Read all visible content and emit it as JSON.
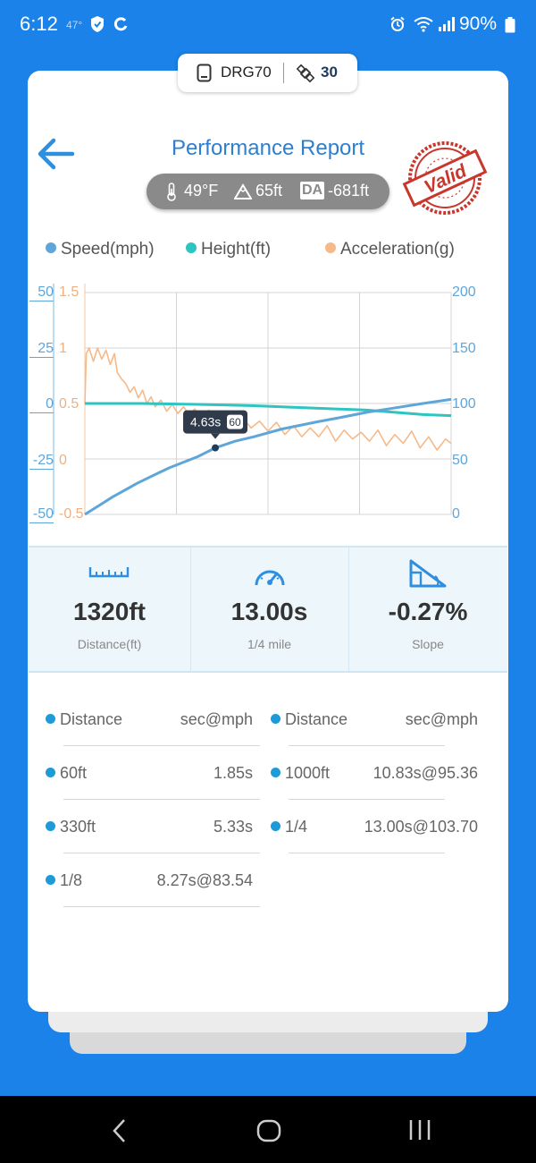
{
  "status_bar": {
    "time": "6:12",
    "temperature": "47°",
    "battery": "90%"
  },
  "device": {
    "name": "DRG70",
    "satellites": "30"
  },
  "header": {
    "title": "Performance Report",
    "badge": "Valid"
  },
  "conditions": {
    "temperature": "49°F",
    "altitude": "65ft",
    "da_label": "DA",
    "density_altitude": "-681ft"
  },
  "legend": {
    "speed": "Speed(mph)",
    "height": "Height(ft)",
    "acceleration": "Acceleration(g)"
  },
  "colors": {
    "speed": "#5ea6da",
    "height": "#2ec4c0",
    "acceleration": "#f5b98a",
    "accent": "#2e7fd0"
  },
  "chart_data": {
    "type": "line",
    "x_range": [
      0,
      13.0
    ],
    "axes": {
      "height_axis": {
        "ticks": [
          "50",
          "25",
          "0",
          "-25",
          "-50"
        ],
        "range": [
          -50,
          50
        ]
      },
      "acceleration_axis": {
        "ticks": [
          "1.5",
          "1",
          "0.5",
          "0",
          "-0.5"
        ],
        "range": [
          -0.5,
          1.5
        ]
      },
      "speed_axis": {
        "ticks": [
          "200",
          "150",
          "100",
          "50",
          "0"
        ],
        "range": [
          0,
          200
        ]
      }
    },
    "grid": true,
    "series": [
      {
        "name": "Speed(mph)",
        "x": [
          0,
          0.5,
          1,
          1.5,
          1.85,
          2.5,
          3,
          4,
          4.63,
          5.33,
          6,
          7,
          8.27,
          9,
          10,
          10.83,
          12,
          13
        ],
        "values": [
          0,
          8,
          16,
          23,
          28,
          36,
          42,
          52,
          60,
          66,
          70,
          77,
          83.54,
          87,
          92,
          95.36,
          100,
          103.7
        ]
      },
      {
        "name": "Height(ft)",
        "x": [
          0,
          2,
          4,
          6,
          8,
          10,
          11,
          12,
          13
        ],
        "values": [
          0,
          0,
          -0.4,
          -1,
          -2,
          -3,
          -4,
          -5,
          -5.5
        ]
      },
      {
        "name": "Acceleration(g)",
        "x": [
          0,
          0.05,
          0.15,
          0.3,
          0.45,
          0.6,
          0.75,
          0.9,
          1.05,
          1.15,
          1.3,
          1.45,
          1.6,
          1.75,
          1.9,
          2.05,
          2.2,
          2.35,
          2.5,
          2.7,
          2.9,
          3.1,
          3.3,
          3.5,
          3.7,
          3.9,
          4.1,
          4.4,
          4.7,
          5.0,
          5.3,
          5.6,
          5.9,
          6.2,
          6.5,
          6.8,
          7.1,
          7.4,
          7.7,
          8.0,
          8.3,
          8.6,
          8.9,
          9.2,
          9.5,
          9.8,
          10.1,
          10.4,
          10.7,
          11.0,
          11.3,
          11.6,
          11.9,
          12.2,
          12.5,
          12.8,
          13.0
        ],
        "values": [
          0.5,
          0.95,
          1.0,
          0.88,
          1.0,
          0.9,
          0.98,
          0.85,
          0.95,
          0.78,
          0.72,
          0.68,
          0.6,
          0.65,
          0.55,
          0.62,
          0.5,
          0.56,
          0.47,
          0.53,
          0.43,
          0.49,
          0.41,
          0.47,
          0.4,
          0.45,
          0.38,
          0.44,
          0.33,
          0.39,
          0.3,
          0.37,
          0.28,
          0.34,
          0.25,
          0.33,
          0.22,
          0.3,
          0.2,
          0.28,
          0.2,
          0.3,
          0.16,
          0.26,
          0.18,
          0.24,
          0.16,
          0.26,
          0.12,
          0.22,
          0.14,
          0.25,
          0.1,
          0.2,
          0.08,
          0.18,
          0.14
        ]
      }
    ],
    "marker": {
      "time": 4.63,
      "speed": 60,
      "time_label": "4.63s",
      "speed_label": "60"
    }
  },
  "stats": [
    {
      "value": "1320ft",
      "label": "Distance(ft)",
      "icon": "ruler-icon"
    },
    {
      "value": "13.00s",
      "label": "1/4 mile",
      "icon": "speedometer-icon"
    },
    {
      "value": "-0.27%",
      "label": "Slope",
      "icon": "slope-icon"
    }
  ],
  "splits": {
    "header": {
      "distance": "Distance",
      "time": "sec@mph"
    },
    "left": [
      {
        "distance": "60ft",
        "time": "1.85s"
      },
      {
        "distance": "330ft",
        "time": "5.33s"
      },
      {
        "distance": "1/8",
        "time": "8.27s@83.54"
      }
    ],
    "right": [
      {
        "distance": "1000ft",
        "time": "10.83s@95.36"
      },
      {
        "distance": "1/4",
        "time": "13.00s@103.70"
      }
    ]
  }
}
